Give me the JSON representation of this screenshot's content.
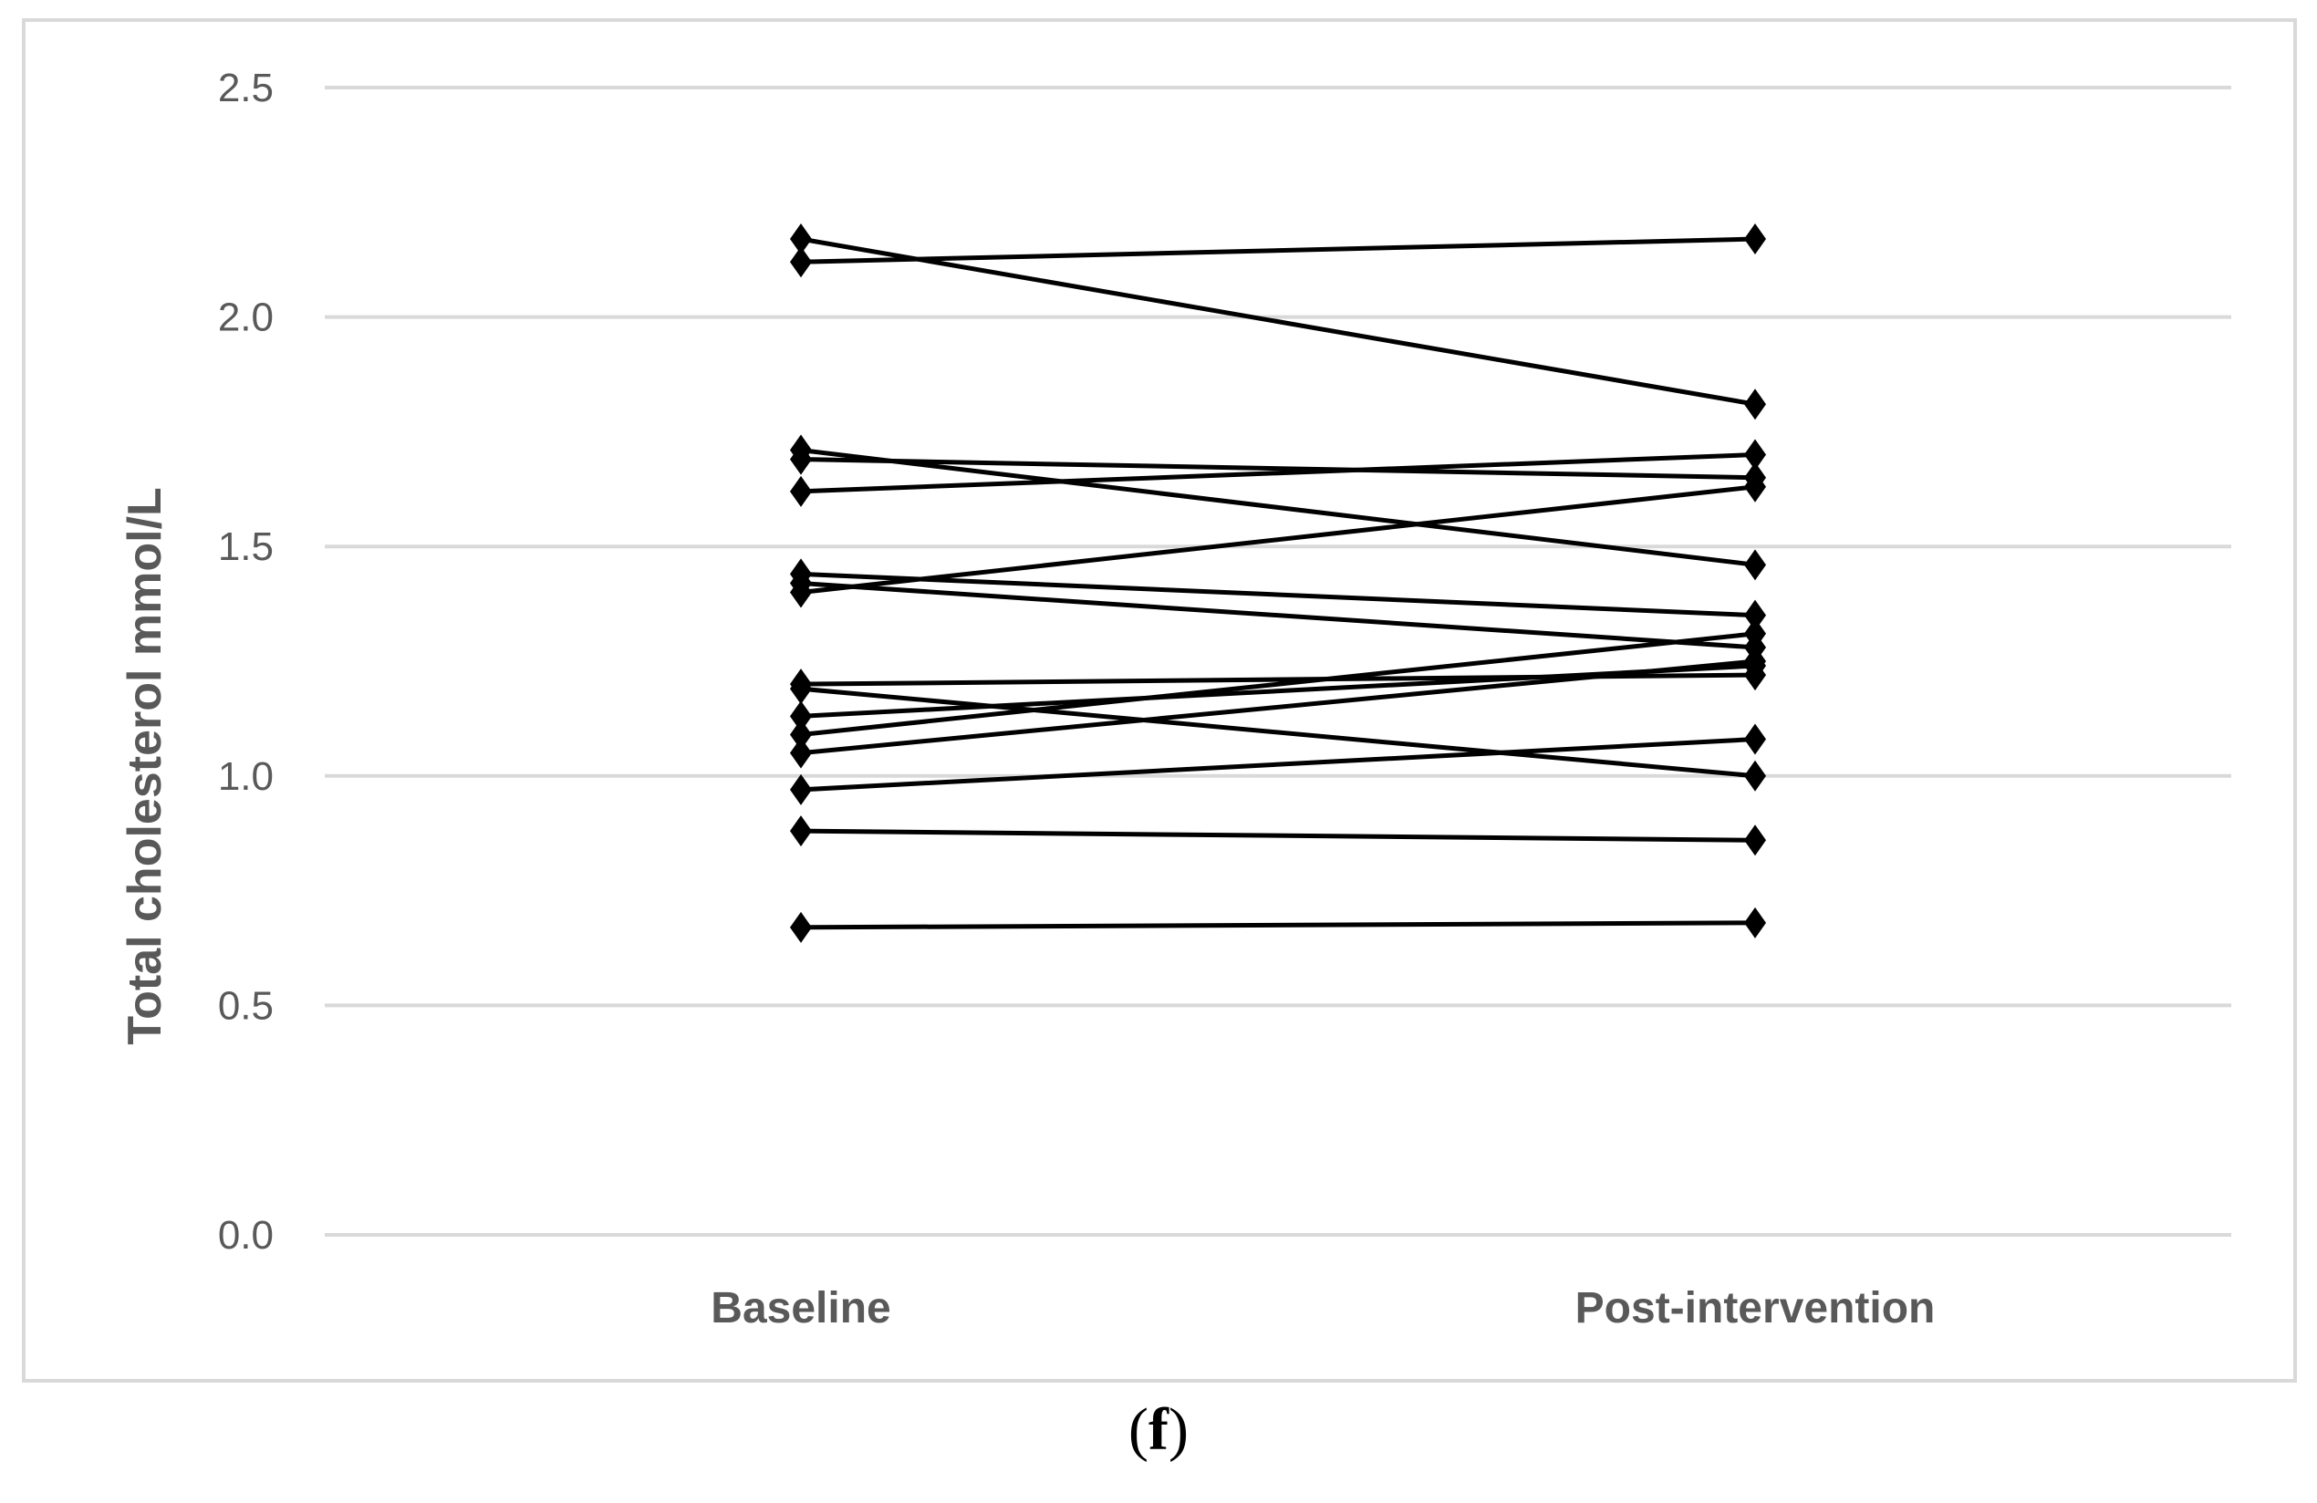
{
  "figure": {
    "caption_open": "(",
    "caption_letter": "f",
    "caption_close": ")"
  },
  "chart_data": {
    "type": "line",
    "title": "",
    "xlabel": "",
    "ylabel": "Total cholesterol mmol/L",
    "categories": [
      "Baseline",
      "Post-intervention"
    ],
    "ylim": [
      0.0,
      2.5
    ],
    "yticks": [
      "0.0",
      "0.5",
      "1.0",
      "1.5",
      "2.0",
      "2.5"
    ],
    "grid": true,
    "legend": "none",
    "marker": "diamond",
    "line_color": "#000000",
    "grid_color": "#d9d9d9",
    "series": [
      {
        "values": [
          2.12,
          2.17
        ]
      },
      {
        "values": [
          2.17,
          1.81
        ]
      },
      {
        "values": [
          1.71,
          1.46
        ]
      },
      {
        "values": [
          1.69,
          1.65
        ]
      },
      {
        "values": [
          1.62,
          1.7
        ]
      },
      {
        "values": [
          1.4,
          1.63
        ]
      },
      {
        "values": [
          1.44,
          1.35
        ]
      },
      {
        "values": [
          1.42,
          1.28
        ]
      },
      {
        "values": [
          1.2,
          1.22
        ]
      },
      {
        "values": [
          1.19,
          1.0
        ]
      },
      {
        "values": [
          1.13,
          1.24
        ]
      },
      {
        "values": [
          1.09,
          1.31
        ]
      },
      {
        "values": [
          1.05,
          1.25
        ]
      },
      {
        "values": [
          0.97,
          1.08
        ]
      },
      {
        "values": [
          0.88,
          0.86
        ]
      },
      {
        "values": [
          0.67,
          0.68
        ]
      }
    ]
  }
}
